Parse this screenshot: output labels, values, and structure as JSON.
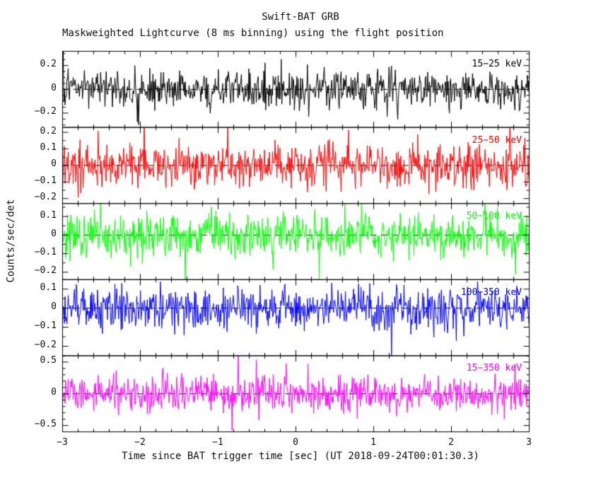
{
  "header": {
    "title": "Swift-BAT GRB",
    "subtitle": "Maskweighted Lightcurve (8 ms binning) using the flight position"
  },
  "chart_data": {
    "type": "line",
    "title": "Swift-BAT GRB",
    "subtitle": "Maskweighted Lightcurve (8 ms binning) using the flight position",
    "xlabel": "Time since BAT trigger time [sec] (UT 2018-09-24T00:01:30.3)",
    "ylabel": "Counts/sec/det",
    "grid": false,
    "legend_position": "in-panel-top-right",
    "x": {
      "min": -3,
      "max": 3,
      "major_ticks": [
        -3,
        -2,
        -1,
        0,
        1,
        2,
        3
      ],
      "minor_step": 0.2,
      "binning": "8 ms",
      "n_points": 750
    },
    "zero_line": {
      "style": "dashed",
      "color": "#000000",
      "value": 0
    },
    "panels": [
      {
        "label": "15-25 keV",
        "color": "#000000",
        "baseline": 0,
        "noise_sigma": 0.075,
        "ylim": [
          -0.32,
          0.32
        ],
        "yticks": [
          0.2,
          0,
          -0.2
        ],
        "y_minor_step": 0.05,
        "seed": 13
      },
      {
        "label": "25-50 keV",
        "color": "#ff0000",
        "baseline": 0,
        "noise_sigma": 0.065,
        "ylim": [
          -0.23,
          0.23
        ],
        "yticks": [
          0.2,
          0.1,
          0,
          -0.1,
          -0.2
        ],
        "y_minor_step": 0.05,
        "seed": 47
      },
      {
        "label": "50-100 keV",
        "color": "#00ff00",
        "baseline": 0,
        "noise_sigma": 0.06,
        "ylim": [
          -0.24,
          0.17
        ],
        "yticks": [
          0.1,
          0,
          -0.1,
          -0.2
        ],
        "y_minor_step": 0.05,
        "seed": 101
      },
      {
        "label": "100-350 keV",
        "color": "#0000ff",
        "baseline": 0,
        "noise_sigma": 0.055,
        "ylim": [
          -0.25,
          0.15
        ],
        "yticks": [
          0.1,
          0,
          -0.1,
          -0.2
        ],
        "y_minor_step": 0.05,
        "seed": 211
      },
      {
        "label": "15-350 keV",
        "color": "#ff00ff",
        "baseline": 0,
        "noise_sigma": 0.14,
        "ylim": [
          -0.6,
          0.6
        ],
        "yticks": [
          0.5,
          0,
          -0.5
        ],
        "y_minor_step": 0.1,
        "seed": 307
      }
    ]
  }
}
